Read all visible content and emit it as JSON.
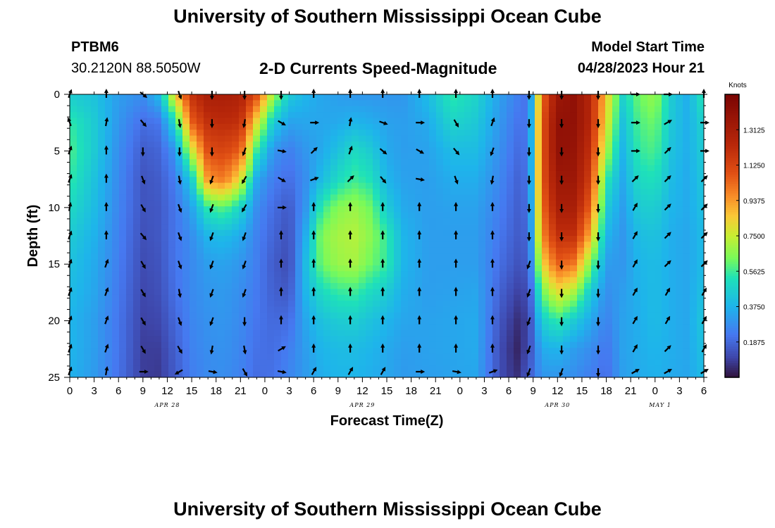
{
  "page": {
    "title": "University of Southern Mississippi Ocean Cube",
    "bottom_title": "University of Southern Mississippi Ocean Cube",
    "station_id": "PTBM6",
    "station_coords": "30.2120N  88.5050W",
    "plot_title": "2-D Currents Speed-Magnitude",
    "model_start_label": "Model Start Time",
    "model_start_value": "04/28/2023 Hour 21"
  },
  "chart_data": {
    "type": "heatmap",
    "title": "2-D Currents Speed-Magnitude",
    "xlabel": "Forecast Time(Z)",
    "ylabel": "Depth (ft)",
    "x_range_hours": [
      0,
      78
    ],
    "x_tick_labels": [
      "0",
      "3",
      "6",
      "9",
      "12",
      "15",
      "18",
      "21",
      "0",
      "3",
      "6",
      "9",
      "12",
      "15",
      "18",
      "21",
      "0",
      "3",
      "6",
      "9",
      "12",
      "15",
      "18",
      "21",
      "0",
      "3",
      "6"
    ],
    "date_labels": [
      {
        "label": "APR 28",
        "hour": 12
      },
      {
        "label": "APR 29",
        "hour": 36
      },
      {
        "label": "APR 30",
        "hour": 60
      },
      {
        "label": "MAY 1",
        "hour": 84
      }
    ],
    "ylim": [
      0,
      25
    ],
    "y_ticks": [
      0,
      5,
      10,
      15,
      20,
      25
    ],
    "colorbar": {
      "unit": "Knots",
      "min": 0,
      "max": 1.5,
      "ticks": [
        "0.1875",
        "0.3750",
        "0.5625",
        "0.7500",
        "0.9375",
        "1.1250",
        "1.3125"
      ],
      "tick_values": [
        0.1875,
        0.375,
        0.5625,
        0.75,
        0.9375,
        1.125,
        1.3125
      ]
    },
    "speed_depths_ft": [
      0,
      2.5,
      5,
      7.5,
      10,
      12.5,
      15,
      17.5,
      20,
      22.5,
      25
    ],
    "speed_profiles": [
      {
        "hour": 0,
        "speeds": [
          0.45,
          0.55,
          0.58,
          0.55,
          0.5,
          0.45,
          0.42,
          0.4,
          0.38,
          0.38,
          0.37
        ]
      },
      {
        "hour": 3,
        "speeds": [
          0.42,
          0.45,
          0.45,
          0.42,
          0.4,
          0.37,
          0.35,
          0.34,
          0.32,
          0.32,
          0.31
        ]
      },
      {
        "hour": 6,
        "speeds": [
          0.32,
          0.3,
          0.28,
          0.27,
          0.26,
          0.25,
          0.24,
          0.23,
          0.22,
          0.22,
          0.21
        ]
      },
      {
        "hour": 9,
        "speeds": [
          0.28,
          0.2,
          0.16,
          0.14,
          0.14,
          0.13,
          0.12,
          0.11,
          0.1,
          0.09,
          0.09
        ]
      },
      {
        "hour": 11,
        "speeds": [
          0.4,
          0.22,
          0.18,
          0.16,
          0.15,
          0.15,
          0.14,
          0.13,
          0.11,
          0.09,
          0.08
        ]
      },
      {
        "hour": 13,
        "speeds": [
          0.85,
          0.5,
          0.3,
          0.24,
          0.22,
          0.22,
          0.22,
          0.21,
          0.19,
          0.17,
          0.16
        ]
      },
      {
        "hour": 15,
        "speeds": [
          1.2,
          1.05,
          0.75,
          0.45,
          0.33,
          0.28,
          0.27,
          0.27,
          0.26,
          0.25,
          0.24
        ]
      },
      {
        "hour": 17,
        "speeds": [
          1.3,
          1.2,
          1.1,
          0.95,
          0.55,
          0.38,
          0.32,
          0.3,
          0.29,
          0.28,
          0.27
        ]
      },
      {
        "hour": 19,
        "speeds": [
          1.3,
          1.22,
          1.12,
          1.0,
          0.6,
          0.4,
          0.33,
          0.31,
          0.3,
          0.29,
          0.28
        ]
      },
      {
        "hour": 21,
        "speeds": [
          1.28,
          1.2,
          1.05,
          0.8,
          0.48,
          0.35,
          0.3,
          0.28,
          0.27,
          0.26,
          0.25
        ]
      },
      {
        "hour": 23,
        "speeds": [
          1.1,
          0.8,
          0.55,
          0.35,
          0.28,
          0.25,
          0.24,
          0.23,
          0.22,
          0.21,
          0.2
        ]
      },
      {
        "hour": 25,
        "speeds": [
          0.7,
          0.45,
          0.3,
          0.24,
          0.2,
          0.18,
          0.16,
          0.17,
          0.19,
          0.2,
          0.21
        ]
      },
      {
        "hour": 27,
        "speeds": [
          0.45,
          0.33,
          0.24,
          0.2,
          0.15,
          0.13,
          0.12,
          0.15,
          0.2,
          0.24,
          0.26
        ]
      },
      {
        "hour": 29,
        "speeds": [
          0.38,
          0.34,
          0.3,
          0.28,
          0.3,
          0.36,
          0.4,
          0.38,
          0.34,
          0.32,
          0.31
        ]
      },
      {
        "hour": 31,
        "speeds": [
          0.34,
          0.34,
          0.35,
          0.4,
          0.55,
          0.65,
          0.62,
          0.5,
          0.42,
          0.38,
          0.36
        ]
      },
      {
        "hour": 33,
        "speeds": [
          0.32,
          0.35,
          0.42,
          0.5,
          0.65,
          0.7,
          0.68,
          0.55,
          0.45,
          0.4,
          0.38
        ]
      },
      {
        "hour": 35,
        "speeds": [
          0.3,
          0.38,
          0.5,
          0.56,
          0.68,
          0.72,
          0.7,
          0.56,
          0.46,
          0.4,
          0.38
        ]
      },
      {
        "hour": 37,
        "speeds": [
          0.3,
          0.36,
          0.45,
          0.52,
          0.62,
          0.66,
          0.62,
          0.5,
          0.42,
          0.38,
          0.36
        ]
      },
      {
        "hour": 39,
        "speeds": [
          0.3,
          0.33,
          0.35,
          0.38,
          0.45,
          0.55,
          0.55,
          0.45,
          0.38,
          0.35,
          0.34
        ]
      },
      {
        "hour": 41,
        "speeds": [
          0.3,
          0.32,
          0.32,
          0.33,
          0.35,
          0.38,
          0.38,
          0.36,
          0.34,
          0.32,
          0.31
        ]
      },
      {
        "hour": 44,
        "speeds": [
          0.4,
          0.35,
          0.33,
          0.32,
          0.32,
          0.32,
          0.32,
          0.32,
          0.33,
          0.33,
          0.32
        ]
      },
      {
        "hour": 47,
        "speeds": [
          0.55,
          0.48,
          0.4,
          0.36,
          0.33,
          0.32,
          0.32,
          0.33,
          0.34,
          0.34,
          0.33
        ]
      },
      {
        "hour": 50,
        "speeds": [
          0.48,
          0.44,
          0.4,
          0.36,
          0.33,
          0.32,
          0.32,
          0.34,
          0.35,
          0.35,
          0.34
        ]
      },
      {
        "hour": 53,
        "speeds": [
          0.32,
          0.3,
          0.28,
          0.26,
          0.24,
          0.22,
          0.2,
          0.17,
          0.14,
          0.12,
          0.12
        ]
      },
      {
        "hour": 55,
        "speeds": [
          0.25,
          0.22,
          0.2,
          0.18,
          0.17,
          0.16,
          0.14,
          0.1,
          0.06,
          0.04,
          0.06
        ]
      },
      {
        "hour": 56.5,
        "speeds": [
          0.2,
          0.22,
          0.22,
          0.21,
          0.2,
          0.18,
          0.16,
          0.12,
          0.1,
          0.12,
          0.16
        ]
      },
      {
        "hour": 58,
        "speeds": [
          1.0,
          1.05,
          1.05,
          1.05,
          1.0,
          0.95,
          0.8,
          0.6,
          0.45,
          0.35,
          0.3
        ]
      },
      {
        "hour": 60,
        "speeds": [
          1.35,
          1.4,
          1.4,
          1.35,
          1.3,
          1.2,
          1.05,
          0.8,
          0.55,
          0.38,
          0.3
        ]
      },
      {
        "hour": 62,
        "speeds": [
          1.4,
          1.4,
          1.38,
          1.35,
          1.3,
          1.2,
          1.0,
          0.7,
          0.45,
          0.32,
          0.28
        ]
      },
      {
        "hour": 64,
        "speeds": [
          1.25,
          1.25,
          1.2,
          1.15,
          1.05,
          0.9,
          0.65,
          0.45,
          0.35,
          0.28,
          0.24
        ]
      },
      {
        "hour": 66,
        "speeds": [
          0.85,
          0.8,
          0.7,
          0.55,
          0.45,
          0.38,
          0.32,
          0.28,
          0.25,
          0.22,
          0.2
        ]
      },
      {
        "hour": 68,
        "speeds": [
          0.48,
          0.42,
          0.38,
          0.35,
          0.32,
          0.3,
          0.3,
          0.32,
          0.33,
          0.33,
          0.32
        ]
      },
      {
        "hour": 70,
        "speeds": [
          0.62,
          0.58,
          0.55,
          0.5,
          0.45,
          0.4,
          0.38,
          0.37,
          0.36,
          0.36,
          0.35
        ]
      },
      {
        "hour": 72,
        "speeds": [
          0.68,
          0.62,
          0.58,
          0.52,
          0.46,
          0.42,
          0.4,
          0.4,
          0.4,
          0.38,
          0.37
        ]
      },
      {
        "hour": 74,
        "speeds": [
          0.45,
          0.44,
          0.42,
          0.4,
          0.38,
          0.36,
          0.36,
          0.36,
          0.36,
          0.36,
          0.35
        ]
      },
      {
        "hour": 76,
        "speeds": [
          0.36,
          0.36,
          0.36,
          0.35,
          0.35,
          0.34,
          0.34,
          0.34,
          0.34,
          0.34,
          0.34
        ]
      },
      {
        "hour": 78,
        "speeds": [
          0.55,
          0.48,
          0.46,
          0.44,
          0.42,
          0.4,
          0.4,
          0.42,
          0.44,
          0.42,
          0.4
        ]
      }
    ],
    "vector_hours": [
      0,
      4.5,
      9,
      13.5,
      17.5,
      21.5,
      26,
      30,
      34.5,
      38.5,
      43,
      47.5,
      52,
      56.5,
      60.5,
      65,
      69.5,
      73.5,
      78
    ],
    "vector_depths_ft": [
      0,
      2.5,
      5,
      7.5,
      10,
      12.5,
      15,
      17.5,
      20,
      22.5,
      24.5
    ],
    "vector_directions_deg_by_column": [
      [
        20,
        340,
        20,
        20,
        10,
        20,
        20,
        20,
        20,
        20,
        20
      ],
      [
        0,
        10,
        0,
        0,
        0,
        0,
        20,
        20,
        20,
        20,
        10
      ],
      [
        130,
        140,
        180,
        160,
        150,
        140,
        150,
        150,
        150,
        150,
        90
      ],
      [
        160,
        170,
        180,
        170,
        160,
        160,
        160,
        170,
        160,
        150,
        240
      ],
      [
        180,
        180,
        180,
        200,
        200,
        200,
        200,
        200,
        200,
        190,
        100
      ],
      [
        180,
        190,
        200,
        210,
        210,
        200,
        200,
        200,
        180,
        170,
        150
      ],
      [
        180,
        120,
        100,
        120,
        90,
        0,
        0,
        0,
        0,
        60,
        100
      ],
      [
        0,
        90,
        45,
        70,
        0,
        0,
        0,
        0,
        0,
        0,
        30
      ],
      [
        0,
        10,
        20,
        45,
        0,
        0,
        0,
        0,
        0,
        0,
        30
      ],
      [
        0,
        110,
        130,
        140,
        0,
        0,
        0,
        0,
        0,
        0,
        30
      ],
      [
        0,
        90,
        120,
        100,
        0,
        0,
        0,
        0,
        0,
        0,
        90
      ],
      [
        0,
        150,
        140,
        160,
        0,
        0,
        0,
        0,
        0,
        0,
        100
      ],
      [
        0,
        20,
        200,
        190,
        0,
        0,
        0,
        0,
        0,
        0,
        70
      ],
      [
        180,
        180,
        180,
        180,
        180,
        180,
        200,
        200,
        200,
        200,
        200
      ],
      [
        180,
        180,
        180,
        180,
        180,
        180,
        180,
        180,
        180,
        180,
        200
      ],
      [
        180,
        180,
        180,
        180,
        180,
        180,
        180,
        180,
        180,
        180,
        180
      ],
      [
        90,
        90,
        90,
        45,
        30,
        30,
        30,
        30,
        30,
        30,
        60
      ],
      [
        90,
        60,
        45,
        45,
        45,
        45,
        45,
        30,
        30,
        45,
        60
      ],
      [
        0,
        90,
        90,
        45,
        45,
        45,
        45,
        30,
        30,
        30,
        60
      ]
    ]
  }
}
